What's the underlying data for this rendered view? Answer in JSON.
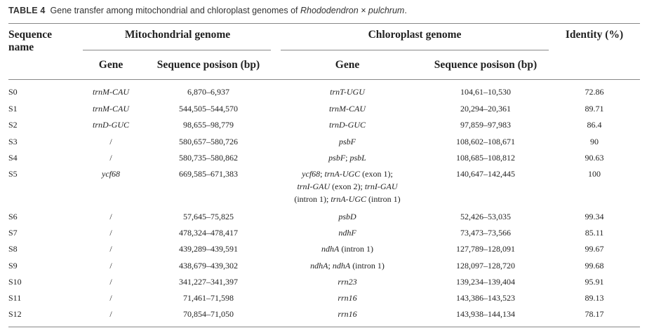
{
  "caption": {
    "label": "TABLE 4",
    "text": "Gene transfer among mitochondrial and chloroplast genomes of ",
    "species": "Rhododendron × pulchrum",
    "end": "."
  },
  "headers": {
    "sequence_name_1": "Sequence",
    "sequence_name_2": "name",
    "mito": "Mitochondrial genome",
    "chloro": "Chloroplast genome",
    "identity": "Identity (%)",
    "mito_gene": "Gene",
    "mito_pos": "Sequence posison (bp)",
    "chloro_gene": "Gene",
    "chloro_pos": "Sequence posison (bp)"
  },
  "rows": [
    {
      "name": "S0",
      "mito_gene": "trnM-CAU",
      "mito_pos": "6,870–6,937",
      "chloro_gene": [
        "trnT-UGU"
      ],
      "chloro_pos": "104,61–10,530",
      "identity": "72.86"
    },
    {
      "name": "S1",
      "mito_gene": "trnM-CAU",
      "mito_pos": "544,505–544,570",
      "chloro_gene": [
        "trnM-CAU"
      ],
      "chloro_pos": "20,294–20,361",
      "identity": "89.71"
    },
    {
      "name": "S2",
      "mito_gene": "trnD-GUC",
      "mito_pos": "98,655–98,779",
      "chloro_gene": [
        "trnD-GUC"
      ],
      "chloro_pos": "97,859–97,983",
      "identity": "86.4"
    },
    {
      "name": "S3",
      "mito_gene": "/",
      "mito_pos": "580,657–580,726",
      "chloro_gene": [
        "psbF"
      ],
      "chloro_pos": "108,602–108,671",
      "identity": "90"
    },
    {
      "name": "S4",
      "mito_gene": "/",
      "mito_pos": "580,735–580,862",
      "chloro_gene": [
        "psbF; psbL"
      ],
      "chloro_pos": "108,685–108,812",
      "identity": "90.63"
    },
    {
      "name": "S5",
      "mito_gene": "ycf68",
      "mito_pos": "669,585–671,383",
      "chloro_gene": [
        "ycf68; trnA-UGC (exon 1);",
        "trnI-GAU (exon 2); trnI-GAU",
        "(intron 1); trnA-UGC (intron 1)"
      ],
      "chloro_pos": "140,647–142,445",
      "identity": "100"
    },
    {
      "name": "S6",
      "mito_gene": "/",
      "mito_pos": "57,645–75,825",
      "chloro_gene": [
        "psbD"
      ],
      "chloro_pos": "52,426–53,035",
      "identity": "99.34"
    },
    {
      "name": "S7",
      "mito_gene": "/",
      "mito_pos": "478,324–478,417",
      "chloro_gene": [
        "ndhF"
      ],
      "chloro_pos": "73,473–73,566",
      "identity": "85.11"
    },
    {
      "name": "S8",
      "mito_gene": "/",
      "mito_pos": "439,289–439,591",
      "chloro_gene": [
        "ndhA (intron 1)"
      ],
      "chloro_pos": "127,789–128,091",
      "identity": "99.67"
    },
    {
      "name": "S9",
      "mito_gene": "/",
      "mito_pos": "438,679–439,302",
      "chloro_gene": [
        "ndhA; ndhA (intron 1)"
      ],
      "chloro_pos": "128,097–128,720",
      "identity": "99.68"
    },
    {
      "name": "S10",
      "mito_gene": "/",
      "mito_pos": "341,227–341,397",
      "chloro_gene": [
        "rrn23"
      ],
      "chloro_pos": "139,234–139,404",
      "identity": "95.91"
    },
    {
      "name": "S11",
      "mito_gene": "/",
      "mito_pos": "71,461–71,598",
      "chloro_gene": [
        "rrn16"
      ],
      "chloro_pos": "143,386–143,523",
      "identity": "89.13"
    },
    {
      "name": "S12",
      "mito_gene": "/",
      "mito_pos": "70,854–71,050",
      "chloro_gene": [
        "rrn16"
      ],
      "chloro_pos": "143,938–144,134",
      "identity": "78.17"
    }
  ]
}
